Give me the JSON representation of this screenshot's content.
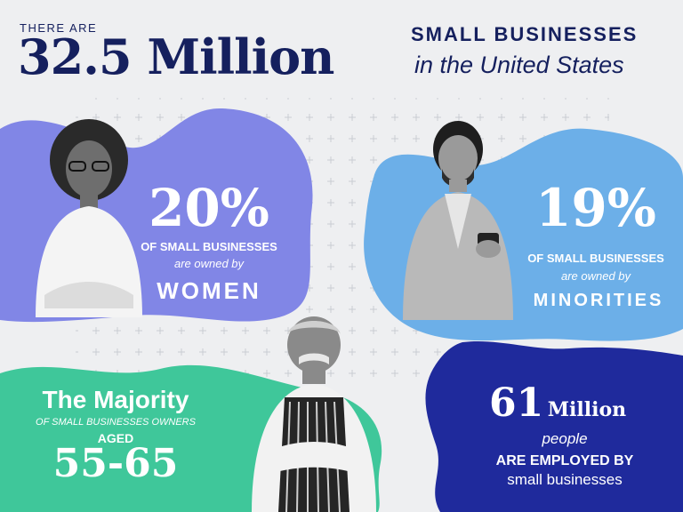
{
  "header": {
    "there_are": "THERE ARE",
    "big_number": "32.5 Million",
    "small_businesses": "SMALL BUSINESSES",
    "location": "in the United States"
  },
  "women": {
    "percent": "20%",
    "of_small": "OF SMALL BUSINESSES",
    "owned_by": "are owned by",
    "group": "WOMEN"
  },
  "minorities": {
    "percent": "19%",
    "of_small": "OF SMALL BUSINESSES",
    "owned_by": "are owned by",
    "group": "MINORITIES"
  },
  "age": {
    "majority": "The Majority",
    "owners": "OF SMALL BUSINESSES OWNERS",
    "aged": "AGED",
    "range": "55-65"
  },
  "employed": {
    "number": "61",
    "million": "Million",
    "people": "people",
    "are_employed": "ARE EMPLOYED BY",
    "small_businesses": "small businesses"
  },
  "colors": {
    "navy": "#15205e",
    "purple_blob": "#8186e6",
    "blue_blob": "#6cafe8",
    "green_blob": "#3fc79a",
    "dark_blue_blob": "#1f2a9c",
    "background": "#eeeff1"
  }
}
